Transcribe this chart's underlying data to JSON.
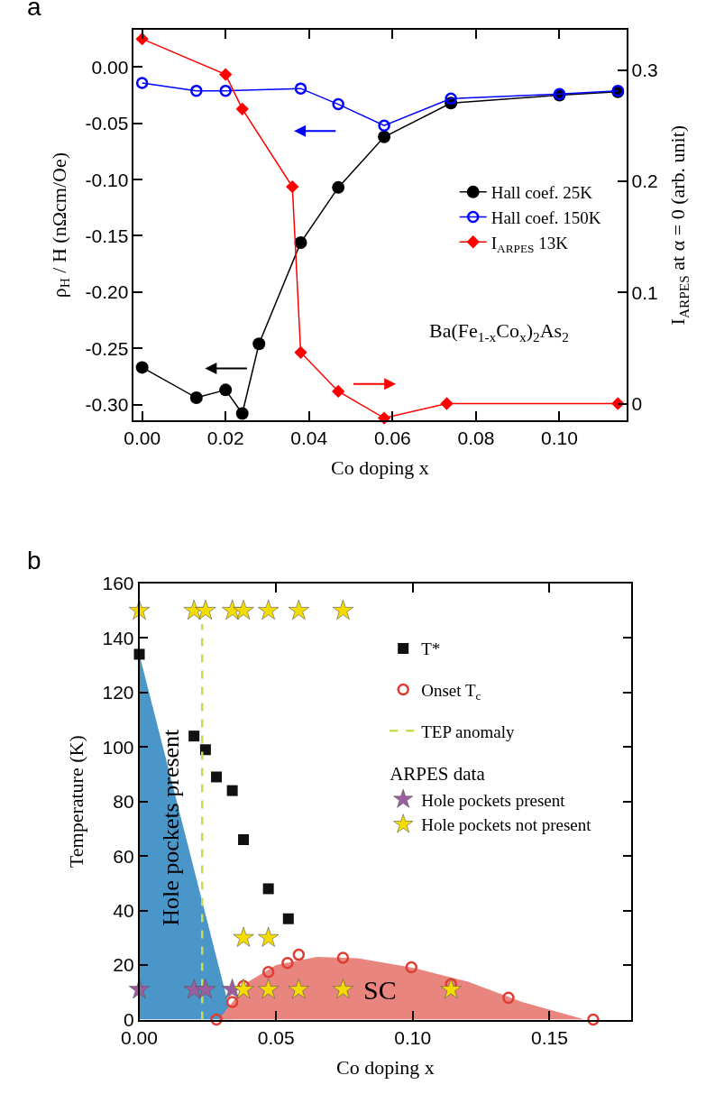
{
  "chart_data": [
    {
      "type": "line",
      "title": "a",
      "xlabel": "Co doping x",
      "ylabel": "ρ$_{H}$ / H (nΩcm/Oe)",
      "y2label": "I$_{ARPES}$ at α = 0 (arb. unit)",
      "xlim": [
        -0.002,
        0.116
      ],
      "xticks": [
        {
          "value": 0,
          "label": "0.00"
        },
        {
          "value": 0.02,
          "label": "0.02"
        },
        {
          "value": 0.04,
          "label": "0.04"
        },
        {
          "value": 0.06,
          "label": "0.06"
        },
        {
          "value": 0.08,
          "label": "0.08"
        },
        {
          "value": 0.1,
          "label": "0.10"
        }
      ],
      "ylim": [
        -0.314,
        0.033
      ],
      "yticks": [
        {
          "value": -0.3,
          "label": "-0.30"
        },
        {
          "value": -0.25,
          "label": "-0.25"
        },
        {
          "value": -0.2,
          "label": "-0.20"
        },
        {
          "value": -0.15,
          "label": "-0.15"
        },
        {
          "value": -0.1,
          "label": "-0.10"
        },
        {
          "value": -0.05,
          "label": "-0.05"
        },
        {
          "value": 0,
          "label": "0.00"
        }
      ],
      "y2lim": [
        -0.015,
        0.336
      ],
      "y2ticks": [
        0,
        0.1,
        0.2,
        0.3
      ],
      "legend": "right",
      "annotations": [
        "Ba(Fe$_{1-x}$Co$_{x}$)$_{2}$As$_{2}$"
      ],
      "series": [
        {
          "name": "Hall coef. 25K",
          "color": "#000000",
          "marker": "circle",
          "x": [
            0,
            0.013,
            0.02,
            0.024,
            0.028,
            0.038,
            0.047,
            0.058,
            0.074,
            0.1,
            0.114
          ],
          "values": [
            -0.267,
            -0.294,
            -0.287,
            -0.308,
            -0.246,
            -0.156,
            -0.107,
            -0.062,
            -0.032,
            -0.025,
            -0.022
          ]
        },
        {
          "name": "Hall coef. 150K",
          "color": "#0000ff",
          "marker": "circle-open",
          "x": [
            0,
            0.013,
            0.02,
            0.038,
            0.047,
            0.058,
            0.074,
            0.1,
            0.114
          ],
          "values": [
            -0.014,
            -0.021,
            -0.021,
            -0.019,
            -0.033,
            -0.052,
            -0.028,
            -0.024,
            -0.021
          ]
        },
        {
          "name": "I$_{ARPES}$ 13K",
          "color": "#ff0000",
          "marker": "diamond",
          "axis": "y2",
          "x": [
            0,
            0.02,
            0.024,
            0.036,
            0.038,
            0.047,
            0.058,
            0.073,
            0.114
          ],
          "values": [
            0.328,
            0.296,
            0.265,
            0.195,
            0.046,
            0.011,
            -0.013,
            0.0,
            0.0
          ]
        }
      ]
    },
    {
      "type": "scatter",
      "title": "b",
      "xlabel": "Co doping x",
      "ylabel": "Temperature (K)",
      "legend_title": "ARPES data",
      "xlim": [
        0,
        0.18
      ],
      "xticks": [
        {
          "value": 0,
          "label": "0.00"
        },
        {
          "value": 0.05,
          "label": "0.05"
        },
        {
          "value": 0.1,
          "label": "0.10"
        },
        {
          "value": 0.15,
          "label": "0.15"
        }
      ],
      "ylim": [
        0,
        160
      ],
      "yticks": [
        0,
        20,
        40,
        60,
        80,
        100,
        120,
        140,
        160
      ],
      "legend": "top right",
      "annotations": [
        "SC",
        "Hole pockets present"
      ],
      "series": [
        {
          "type": "area",
          "color": "#4a96c8",
          "x": [
            0,
            0.034
          ],
          "values": [
            134,
            0
          ]
        },
        {
          "type": "area",
          "color": "#e8857f",
          "x": [
            0.029,
            0.04,
            0.05,
            0.065,
            0.08,
            0.1,
            0.12,
            0.14,
            0.163
          ],
          "values": [
            0,
            14,
            20,
            23,
            22.5,
            19,
            14,
            6.5,
            0
          ]
        },
        {
          "name": "T*",
          "type": "scatter",
          "color": "#111111",
          "marker": "square",
          "x": [
            0,
            0.02,
            0.0242,
            0.0282,
            0.034,
            0.0381,
            0.0472,
            0.0545
          ],
          "values": [
            134,
            104,
            99,
            89,
            84,
            66,
            48,
            37
          ]
        },
        {
          "name": "Onset T$_{c}$",
          "type": "scatter",
          "color": "#e03c32",
          "marker": "circle-open",
          "x": [
            0.0282,
            0.034,
            0.0381,
            0.0472,
            0.0542,
            0.0583,
            0.0745,
            0.0995,
            0.114,
            0.135,
            0.166
          ],
          "values": [
            0,
            6.5,
            12.3,
            17.5,
            20.8,
            23.8,
            22.7,
            19.2,
            13,
            8,
            0
          ]
        },
        {
          "name": "TEP anomaly",
          "type": "line",
          "color": "#c8dc50",
          "line_style": "dashed",
          "marker": "none",
          "x": [
            0.023,
            0.023
          ],
          "values": [
            0,
            145
          ]
        },
        {
          "name": "Hole pockets present",
          "type": "scatter",
          "color": "#9b5fa0",
          "marker": "star",
          "x": [
            0,
            0.02,
            0.0242,
            0.034
          ],
          "values": [
            11,
            11,
            11,
            11
          ]
        },
        {
          "name": "Hole pockets not present",
          "type": "scatter",
          "color": "#f5dc00",
          "marker": "star",
          "x": [
            0,
            0.02,
            0.0242,
            0.034,
            0.0381,
            0.0472,
            0.0583,
            0.0745,
            0.0381,
            0.0472,
            0.0381,
            0.0472,
            0.0583,
            0.0745,
            0.114
          ],
          "values": [
            150,
            150,
            150,
            150,
            150,
            150,
            150,
            150,
            30,
            30,
            11,
            11,
            11,
            11,
            11
          ]
        }
      ]
    }
  ]
}
